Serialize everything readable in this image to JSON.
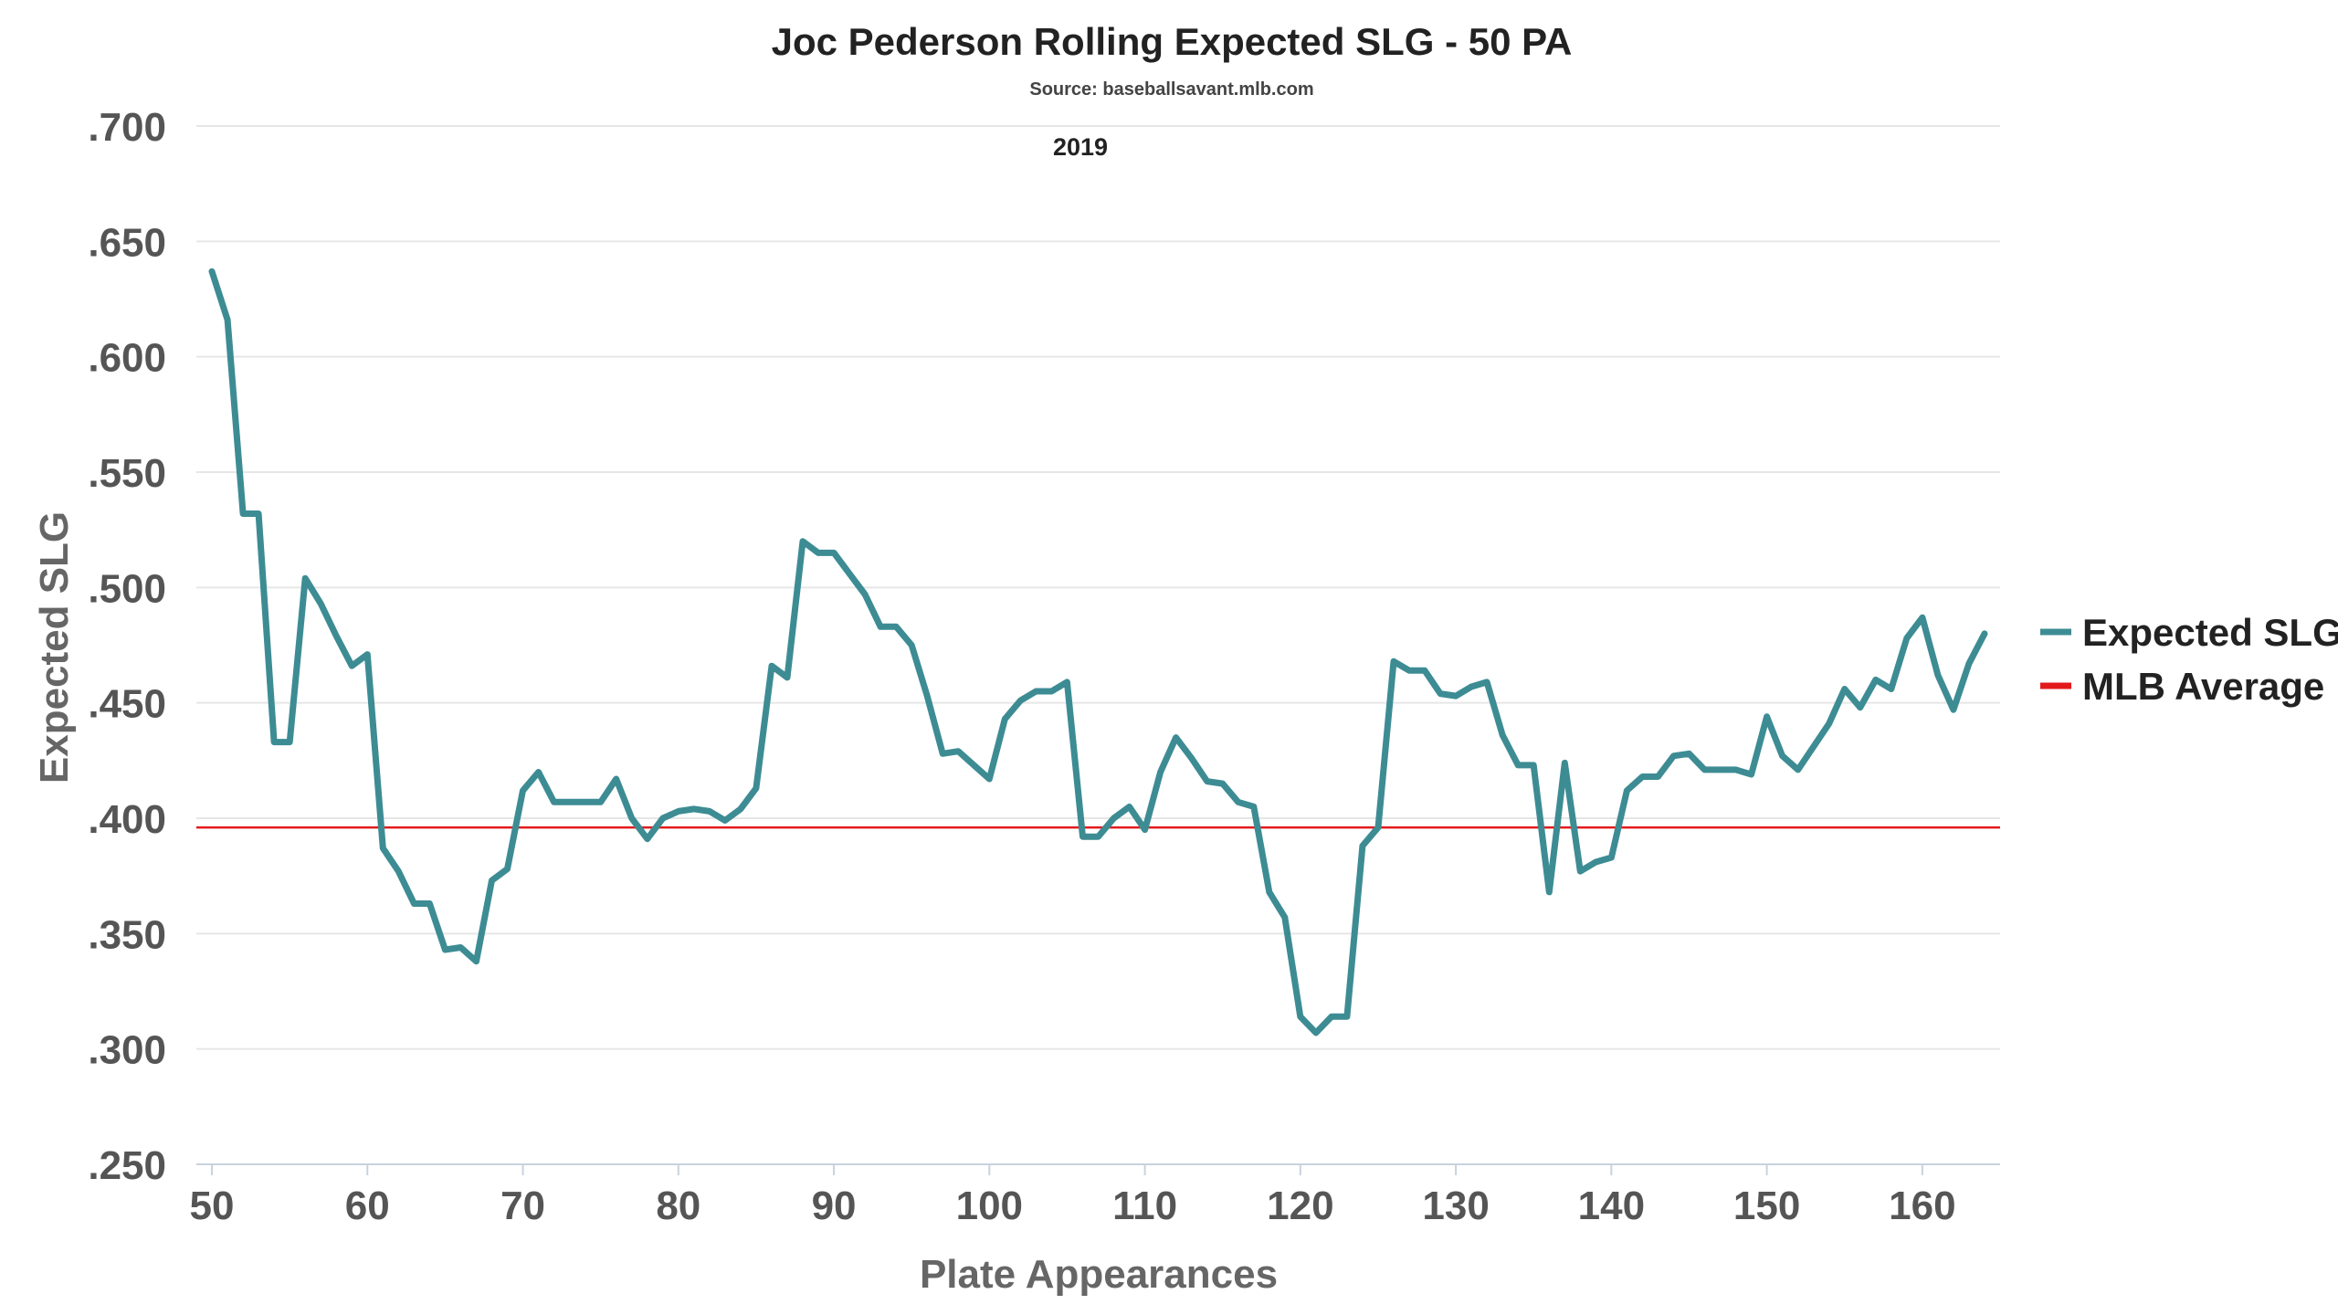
{
  "chart_data": {
    "type": "line",
    "title": "Joc Pederson Rolling Expected SLG - 50 PA",
    "subtitle": "Source: baseballsavant.mlb.com",
    "annotation": "2019",
    "xlabel": "Plate Appearances",
    "ylabel": "Expected SLG",
    "xlim": [
      49,
      165
    ],
    "ylim": [
      0.25,
      0.7
    ],
    "xticks": [
      50,
      60,
      70,
      80,
      90,
      100,
      110,
      120,
      130,
      140,
      150,
      160
    ],
    "yticks": [
      0.25,
      0.3,
      0.35,
      0.4,
      0.45,
      0.5,
      0.55,
      0.6,
      0.65,
      0.7
    ],
    "ytick_labels": [
      ".250",
      ".300",
      ".350",
      ".400",
      ".450",
      ".500",
      ".550",
      ".600",
      ".650",
      ".700"
    ],
    "grid": "horizontal",
    "legend_position": "right",
    "series": [
      {
        "name": "Expected SLG",
        "color": "#3d8c94",
        "x": [
          50,
          51,
          52,
          53,
          54,
          55,
          56,
          57,
          58,
          59,
          60,
          61,
          62,
          63,
          64,
          65,
          66,
          67,
          68,
          69,
          70,
          71,
          72,
          73,
          74,
          75,
          76,
          77,
          78,
          79,
          80,
          81,
          82,
          83,
          84,
          85,
          86,
          87,
          88,
          89,
          90,
          91,
          92,
          93,
          94,
          95,
          96,
          97,
          98,
          99,
          100,
          101,
          102,
          103,
          104,
          105,
          106,
          107,
          108,
          109,
          110,
          111,
          112,
          113,
          114,
          115,
          116,
          117,
          118,
          119,
          120,
          121,
          122,
          123,
          124,
          125,
          126,
          127,
          128,
          129,
          130,
          131,
          132,
          133,
          134,
          135,
          136,
          137,
          138,
          139,
          140,
          141,
          142,
          143,
          144,
          145,
          146,
          147,
          148,
          149,
          150,
          151,
          152,
          153,
          154,
          155,
          156,
          157,
          158,
          159,
          160,
          161,
          162,
          163,
          164
        ],
        "y": [
          0.637,
          0.616,
          0.532,
          0.532,
          0.433,
          0.433,
          0.504,
          0.493,
          0.479,
          0.466,
          0.471,
          0.387,
          0.377,
          0.363,
          0.363,
          0.343,
          0.344,
          0.338,
          0.373,
          0.378,
          0.412,
          0.42,
          0.407,
          0.407,
          0.407,
          0.407,
          0.417,
          0.4,
          0.391,
          0.4,
          0.403,
          0.404,
          0.403,
          0.399,
          0.404,
          0.413,
          0.466,
          0.461,
          0.52,
          0.515,
          0.515,
          0.506,
          0.497,
          0.483,
          0.483,
          0.475,
          0.453,
          0.428,
          0.429,
          0.423,
          0.417,
          0.443,
          0.451,
          0.455,
          0.455,
          0.459,
          0.392,
          0.392,
          0.4,
          0.405,
          0.395,
          0.42,
          0.435,
          0.426,
          0.416,
          0.415,
          0.407,
          0.405,
          0.368,
          0.357,
          0.314,
          0.307,
          0.314,
          0.314,
          0.388,
          0.396,
          0.468,
          0.464,
          0.464,
          0.454,
          0.453,
          0.457,
          0.459,
          0.436,
          0.423,
          0.423,
          0.368,
          0.424,
          0.377,
          0.381,
          0.383,
          0.412,
          0.418,
          0.418,
          0.427,
          0.428,
          0.421,
          0.421,
          0.421,
          0.419,
          0.444,
          0.427,
          0.421,
          0.431,
          0.441,
          0.456,
          0.448,
          0.46,
          0.456,
          0.478,
          0.487,
          0.462,
          0.447,
          0.467,
          0.48
        ]
      },
      {
        "name": "MLB Average",
        "color": "#e31a1c",
        "y_constant": 0.396
      }
    ]
  }
}
